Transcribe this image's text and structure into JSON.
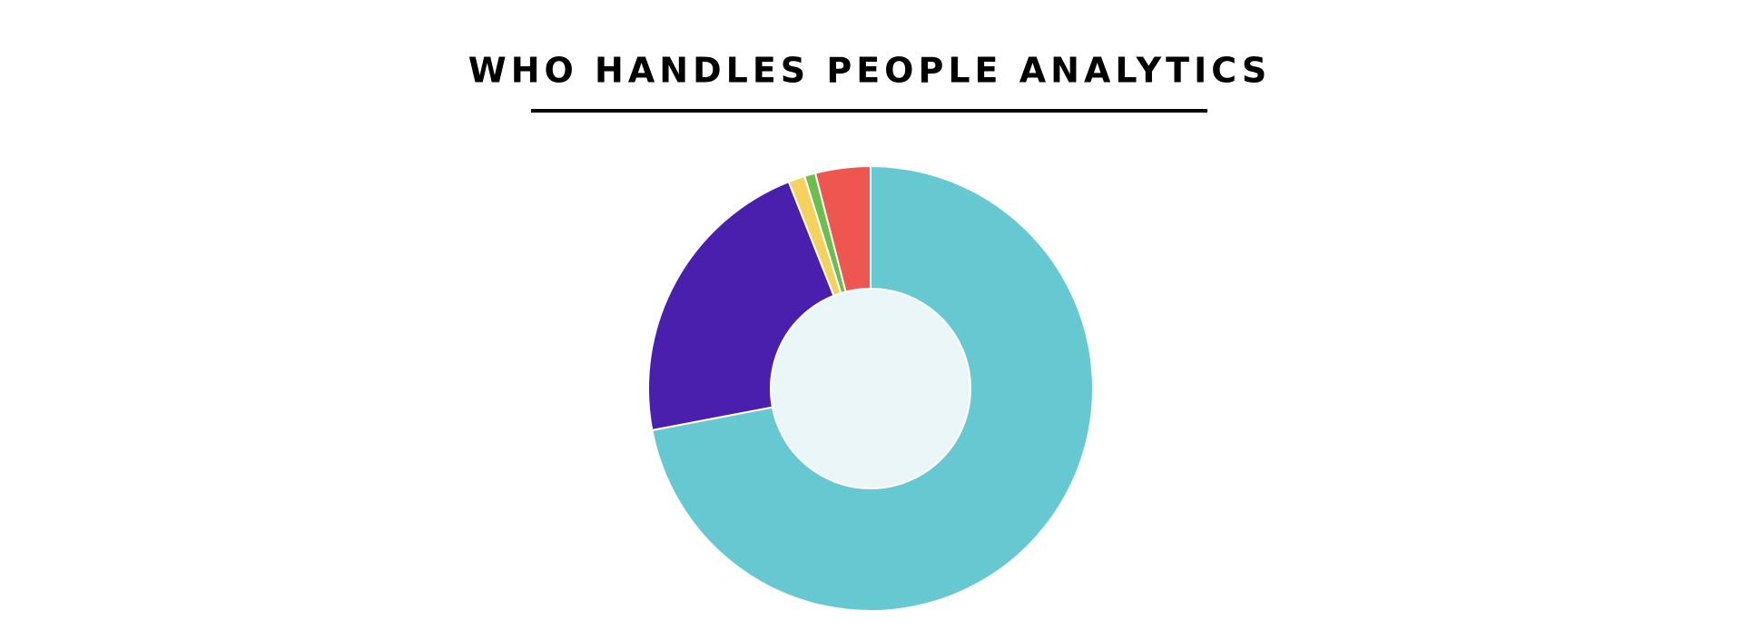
{
  "chart_data": {
    "type": "donut",
    "title": "WHO HANDLES PEOPLE ANALYTICS",
    "categories": [
      null,
      null,
      null,
      null,
      null
    ],
    "values": [
      72,
      22,
      1.2,
      0.8,
      4
    ],
    "colors": [
      "#66c9d2",
      "#4a1fad",
      "#f5d15d",
      "#6bbf4e",
      "#ee5650"
    ]
  }
}
